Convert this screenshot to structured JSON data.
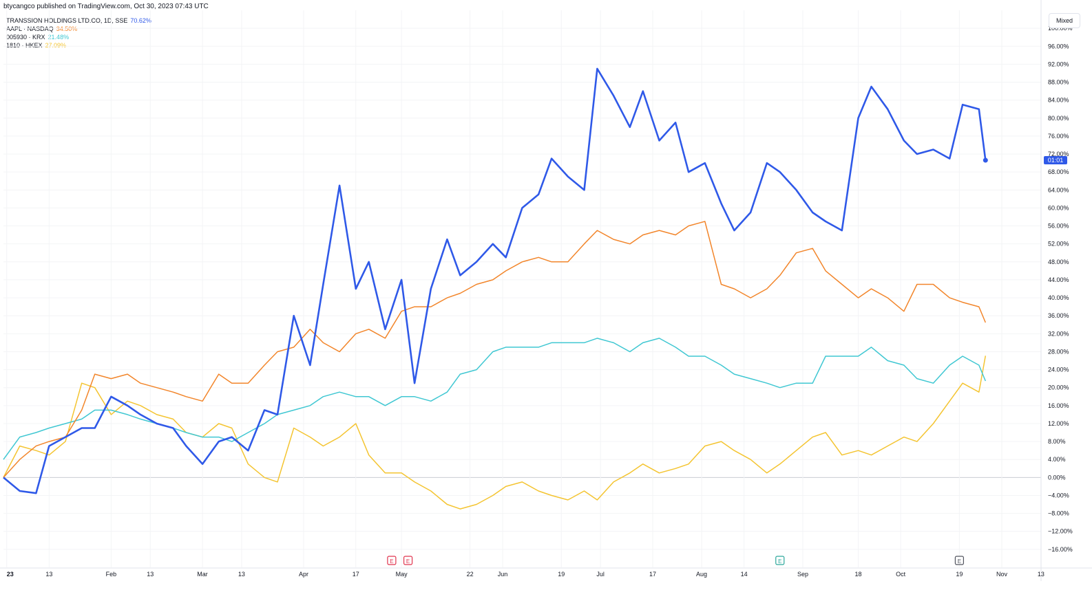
{
  "header": {
    "published": "btycangco published on TradingView.com, Oct 30, 2023 07:43 UTC"
  },
  "legend": [
    {
      "name": "TRANSSION HOLDINGS LTD.CO, 1D, SSE",
      "value": "70.62%",
      "color": "#2f59e8"
    },
    {
      "name": "AAPL · NASDAQ",
      "value": "34.50%",
      "color": "#f2852a"
    },
    {
      "name": "005930 · KRX",
      "value": "21.48%",
      "color": "#3fc7d2"
    },
    {
      "name": "1810 · HKEX",
      "value": "27.09%",
      "color": "#f4c430"
    }
  ],
  "scale_mode_label": "Mixed",
  "last_price_label": "01:01",
  "chart_data": {
    "type": "line",
    "x": [
      "2022-12-30",
      "2023-01-04",
      "2023-01-09",
      "2023-01-13",
      "2023-01-18",
      "2023-01-23",
      "2023-01-27",
      "2023-02-01",
      "2023-02-06",
      "2023-02-10",
      "2023-02-15",
      "2023-02-20",
      "2023-02-24",
      "2023-03-01",
      "2023-03-06",
      "2023-03-10",
      "2023-03-15",
      "2023-03-20",
      "2023-03-24",
      "2023-03-29",
      "2023-04-03",
      "2023-04-07",
      "2023-04-12",
      "2023-04-17",
      "2023-04-21",
      "2023-04-26",
      "2023-05-01",
      "2023-05-05",
      "2023-05-10",
      "2023-05-15",
      "2023-05-19",
      "2023-05-24",
      "2023-05-29",
      "2023-06-02",
      "2023-06-07",
      "2023-06-12",
      "2023-06-16",
      "2023-06-21",
      "2023-06-26",
      "2023-06-30",
      "2023-07-05",
      "2023-07-10",
      "2023-07-14",
      "2023-07-19",
      "2023-07-24",
      "2023-07-28",
      "2023-08-02",
      "2023-08-07",
      "2023-08-11",
      "2023-08-16",
      "2023-08-21",
      "2023-08-25",
      "2023-08-30",
      "2023-09-04",
      "2023-09-08",
      "2023-09-13",
      "2023-09-18",
      "2023-09-22",
      "2023-09-27",
      "2023-10-02",
      "2023-10-06",
      "2023-10-11",
      "2023-10-16",
      "2023-10-20",
      "2023-10-25",
      "2023-10-27"
    ],
    "series": [
      {
        "name": "TRANSSION HOLDINGS LTD.CO, 1D, SSE",
        "color": "#2f59e8",
        "values": [
          0,
          -3,
          -3.5,
          7,
          9,
          11,
          11,
          18,
          16,
          14,
          12,
          11,
          7,
          3,
          8,
          9,
          6,
          15,
          14,
          36,
          25,
          43,
          65,
          42,
          48,
          33,
          44,
          21,
          42,
          53,
          45,
          48,
          52,
          49,
          60,
          63,
          71,
          67,
          64,
          91,
          85,
          78,
          86,
          75,
          79,
          68,
          70,
          61,
          55,
          59,
          70,
          68,
          64,
          59,
          57,
          55,
          80,
          87,
          82,
          75,
          72,
          73,
          71,
          83,
          82,
          70.62
        ]
      },
      {
        "name": "AAPL · NASDAQ",
        "color": "#f2852a",
        "values": [
          0,
          4,
          7,
          8,
          9,
          15,
          23,
          22,
          23,
          21,
          20,
          19,
          18,
          17,
          23,
          21,
          21,
          25,
          28,
          29,
          33,
          30,
          28,
          32,
          33,
          31,
          37,
          38,
          38,
          40,
          41,
          43,
          44,
          46,
          48,
          49,
          48,
          48,
          52,
          55,
          53,
          52,
          54,
          55,
          54,
          56,
          57,
          43,
          42,
          40,
          42,
          45,
          50,
          51,
          46,
          43,
          40,
          42,
          40,
          37,
          43,
          43,
          40,
          39,
          38,
          34.5
        ]
      },
      {
        "name": "005930 · KRX",
        "color": "#3fc7d2",
        "values": [
          4,
          9,
          10,
          11,
          12,
          13,
          15,
          15,
          14,
          13,
          12,
          11,
          10,
          9,
          9,
          8,
          10,
          12,
          14,
          15,
          16,
          18,
          19,
          18,
          18,
          16,
          18,
          18,
          17,
          19,
          23,
          24,
          28,
          29,
          29,
          29,
          30,
          30,
          30,
          31,
          30,
          28,
          30,
          31,
          29,
          27,
          27,
          25,
          23,
          22,
          21,
          20,
          21,
          21,
          27,
          27,
          27,
          29,
          26,
          25,
          22,
          21,
          25,
          27,
          25,
          21.48
        ]
      },
      {
        "name": "1810 · HKEX",
        "color": "#f4c430",
        "values": [
          0,
          7,
          6,
          5,
          8,
          21,
          20,
          14,
          17,
          16,
          14,
          13,
          10,
          9,
          12,
          11,
          3,
          0,
          -1,
          11,
          9,
          7,
          9,
          12,
          5,
          1,
          1,
          -1,
          -3,
          -6,
          -7,
          -6,
          -4,
          -2,
          -1,
          -3,
          -4,
          -5,
          -3,
          -5,
          -1,
          1,
          3,
          1,
          2,
          3,
          7,
          8,
          6,
          4,
          1,
          3,
          6,
          9,
          10,
          5,
          6,
          5,
          7,
          9,
          8,
          12,
          17,
          21,
          19,
          27.09
        ]
      }
    ],
    "x_tick_labels": [
      "23",
      "13",
      "Feb",
      "13",
      "Mar",
      "13",
      "Apr",
      "17",
      "May",
      "22",
      "Jun",
      "19",
      "Jul",
      "17",
      "Aug",
      "14",
      "Sep",
      "18",
      "Oct",
      "19",
      "Nov",
      "13"
    ],
    "y_tick_labels": [
      "100.00%",
      "96.00%",
      "92.00%",
      "88.00%",
      "84.00%",
      "80.00%",
      "76.00%",
      "72.00%",
      "68.00%",
      "64.00%",
      "60.00%",
      "56.00%",
      "52.00%",
      "48.00%",
      "44.00%",
      "40.00%",
      "36.00%",
      "32.00%",
      "28.00%",
      "24.00%",
      "20.00%",
      "16.00%",
      "12.00%",
      "8.00%",
      "4.00%",
      "0.00%",
      "−4.00%",
      "−8.00%",
      "−12.00%",
      "−16.00%"
    ],
    "ylim": [
      -16,
      100
    ],
    "grid": true,
    "event_markers": [
      {
        "label": "E",
        "date": "2023-04-28",
        "color": "#e0334d"
      },
      {
        "label": "E",
        "date": "2023-05-03",
        "color": "#e0334d"
      },
      {
        "label": "E",
        "date": "2023-08-25",
        "color": "#2aa79b"
      },
      {
        "label": "E",
        "date": "2023-10-19",
        "color": "#50535e"
      }
    ]
  }
}
